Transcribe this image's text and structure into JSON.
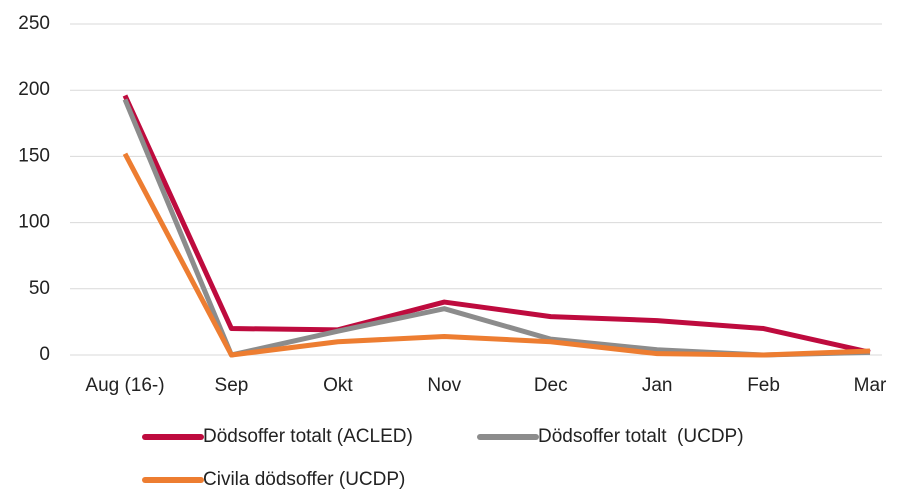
{
  "chart_data": {
    "type": "line",
    "categories": [
      "Aug (16-)",
      "Sep",
      "Okt",
      "Nov",
      "Dec",
      "Jan",
      "Feb",
      "Mar"
    ],
    "series": [
      {
        "name": "Dödsoffer totalt (ACLED)",
        "color": "#be0b3e",
        "values": [
          196,
          20,
          19,
          40,
          29,
          26,
          20,
          2
        ]
      },
      {
        "name": "Dödsoffer totalt  (UCDP)",
        "color": "#8c8c8c",
        "values": [
          193,
          0,
          18,
          35,
          12,
          4,
          0,
          2
        ]
      },
      {
        "name": "Civila dödsoffer (UCDP)",
        "color": "#ed7d31",
        "values": [
          152,
          0,
          10,
          14,
          10,
          1,
          0,
          3
        ]
      }
    ],
    "ylim": [
      0,
      250
    ],
    "yticks": [
      0,
      50,
      100,
      150,
      200,
      250
    ],
    "grid": true,
    "legend": "bottom"
  }
}
